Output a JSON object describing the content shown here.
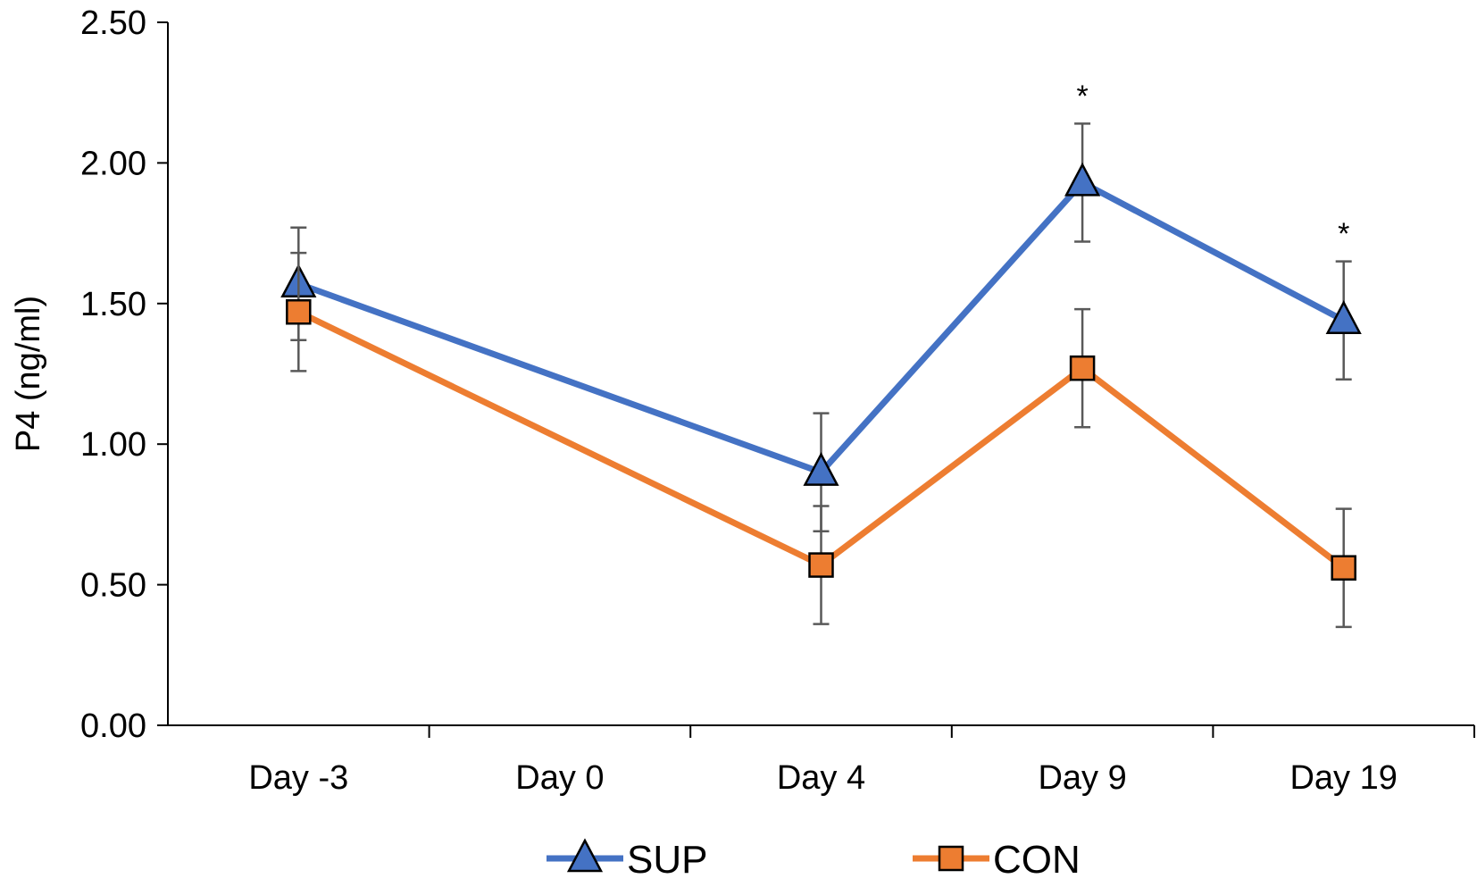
{
  "chart_data": {
    "type": "line",
    "categories": [
      "Day -3",
      "Day 0",
      "Day 4",
      "Day 9",
      "Day 19"
    ],
    "ylabel": "P4 (ng/ml)",
    "xlabel": "",
    "ylim": [
      0,
      2.5
    ],
    "yticks": [
      "0.00",
      "0.50",
      "1.00",
      "1.50",
      "2.00",
      "2.50"
    ],
    "grid": false,
    "legend_position": "bottom-center",
    "series": [
      {
        "name": "SUP",
        "color": "#4472C4",
        "marker": "triangle",
        "values": [
          1.57,
          null,
          0.9,
          1.93,
          1.44
        ],
        "error": [
          0.2,
          null,
          0.21,
          0.21,
          0.21
        ]
      },
      {
        "name": "CON",
        "color": "#ED7D31",
        "marker": "square",
        "values": [
          1.47,
          null,
          0.57,
          1.27,
          0.56
        ],
        "error": [
          0.21,
          null,
          0.21,
          0.21,
          0.21
        ]
      }
    ],
    "annotations": [
      {
        "text": "*",
        "category": "Day 9",
        "y": 2.24
      },
      {
        "text": "*",
        "category": "Day 19",
        "y": 1.75
      }
    ]
  }
}
